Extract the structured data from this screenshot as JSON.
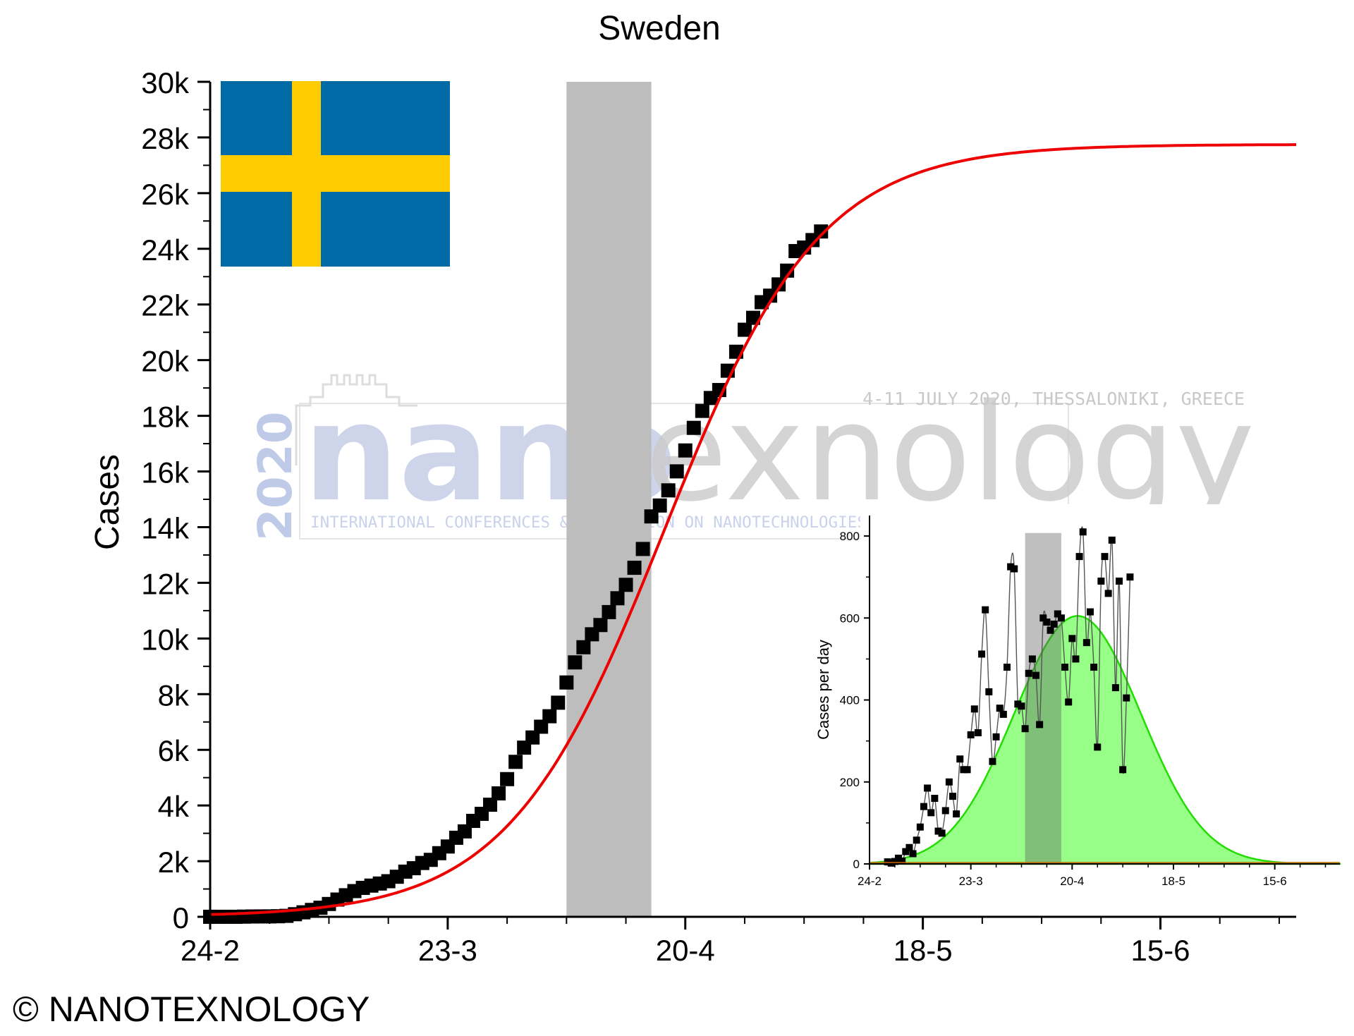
{
  "copyright": "© NANOTEXNOLOGY",
  "colors": {
    "fit": "#ee0000",
    "markers": "#000000",
    "shade": "#bdbdbd",
    "flag_blue": "#006aa7",
    "flag_yellow": "#fecc00",
    "inset_fill": "#7dff6a",
    "inset_line": "#22dd00",
    "watermark_blue": "#bcc8e8",
    "watermark_gray": "#c9c9c9"
  },
  "flag": {
    "icon": "sweden-flag"
  },
  "watermark": {
    "year": "2020",
    "brand_a": "nano",
    "brand_b": "texnology",
    "dateline": "4-11 JULY 2020, THESSALONIKI, GREECE",
    "tagline": "INTERNATIONAL CONFERENCES & EXHIBITION ON NANOTECHNOLOGIES - ORGANIC ELECTRONICS & NANOMEDICINE"
  },
  "chart_data": [
    {
      "type": "scatter",
      "title": "Sweden",
      "ylabel": "Cases",
      "xlabel": "",
      "x_ticks": [
        "24-2",
        "23-3",
        "20-4",
        "18-5",
        "15-6"
      ],
      "x_tick_days": [
        0,
        28,
        56,
        84,
        112
      ],
      "xlim_days": [
        0,
        128
      ],
      "y_ticks": [
        "0",
        "2k",
        "4k",
        "6k",
        "8k",
        "10k",
        "12k",
        "14k",
        "16k",
        "18k",
        "20k",
        "22k",
        "24k",
        "26k",
        "28k",
        "30k"
      ],
      "ylim": [
        0,
        30000
      ],
      "shaded_region_days": [
        42,
        52
      ],
      "grid": false,
      "fit": {
        "type": "logistic",
        "K": 27750,
        "r": 0.109,
        "x0_day": 53.5
      },
      "series": [
        {
          "name": "",
          "x_days": [
            0,
            1,
            2,
            3,
            4,
            5,
            6,
            7,
            8,
            9,
            10,
            11,
            12,
            13,
            14,
            15,
            16,
            17,
            18,
            19,
            20,
            21,
            22,
            23,
            24,
            25,
            26,
            27,
            28,
            29,
            30,
            31,
            32,
            33,
            34,
            35,
            36,
            37,
            38,
            39,
            40,
            41,
            42,
            43,
            44,
            45,
            46,
            47,
            48,
            49,
            50,
            51,
            52,
            53,
            54,
            55,
            56,
            57,
            58,
            59,
            60,
            61,
            62,
            63,
            64,
            65,
            66,
            67,
            68,
            69,
            70,
            71,
            72
          ],
          "y": [
            1,
            1,
            1,
            1,
            7,
            12,
            14,
            15,
            21,
            35,
            94,
            161,
            248,
            326,
            461,
            620,
            775,
            924,
            1040,
            1121,
            1196,
            1279,
            1439,
            1623,
            1746,
            1934,
            2046,
            2286,
            2526,
            2840,
            3069,
            3447,
            3700,
            4028,
            4435,
            4947,
            5568,
            6078,
            6443,
            6830,
            7206,
            7693,
            8419,
            9141,
            9685,
            10151,
            10483,
            10948,
            11445,
            11927,
            12540,
            13216,
            14385,
            14777,
            15322,
            16004,
            16755,
            17567,
            18177,
            18640,
            18926,
            19621,
            20302,
            21092,
            21520,
            22082,
            22317,
            22721,
            23216,
            23918,
            24045,
            24314,
            24623
          ]
        }
      ]
    },
    {
      "type": "scatter",
      "title": "",
      "ylabel": "Cases per day",
      "xlabel": "",
      "x_ticks": [
        "24-2",
        "23-3",
        "20-4",
        "18-5",
        "15-6"
      ],
      "x_tick_days": [
        0,
        28,
        56,
        84,
        112
      ],
      "xlim_days": [
        0,
        130
      ],
      "y_ticks": [
        "0",
        "200",
        "400",
        "600",
        "800"
      ],
      "ylim": [
        0,
        850
      ],
      "shaded_region_days": [
        43,
        53
      ],
      "grid": false,
      "gaussian_fit": {
        "amplitude": 605,
        "center_day": 57.5,
        "sigma_days": 17.5
      },
      "series": [
        {
          "name": "",
          "x_days": [
            5,
            6,
            7,
            8,
            9,
            10,
            11,
            12,
            13,
            14,
            15,
            16,
            17,
            18,
            19,
            20,
            21,
            22,
            23,
            24,
            25,
            26,
            27,
            28,
            29,
            30,
            31,
            32,
            33,
            34,
            35,
            36,
            37,
            38,
            39,
            40,
            41,
            42,
            43,
            44,
            45,
            46,
            47,
            48,
            49,
            50,
            51,
            52,
            53,
            54,
            55,
            56,
            57,
            58,
            59,
            60,
            61,
            62,
            63,
            64,
            65,
            66,
            67,
            68,
            69,
            70,
            71,
            72
          ],
          "y": [
            5,
            2,
            6,
            14,
            7,
            30,
            40,
            25,
            58,
            90,
            140,
            185,
            125,
            160,
            80,
            75,
            130,
            200,
            165,
            122,
            256,
            230,
            230,
            315,
            378,
            320,
            512,
            620,
            420,
            250,
            310,
            380,
            365,
            480,
            725,
            720,
            390,
            385,
            330,
            465,
            500,
            460,
            340,
            600,
            590,
            570,
            585,
            610,
            600,
            480,
            395,
            550,
            500,
            750,
            810,
            540,
            615,
            480,
            285,
            690,
            750,
            660,
            790,
            430,
            690,
            230,
            405,
            700
          ]
        }
      ]
    }
  ]
}
